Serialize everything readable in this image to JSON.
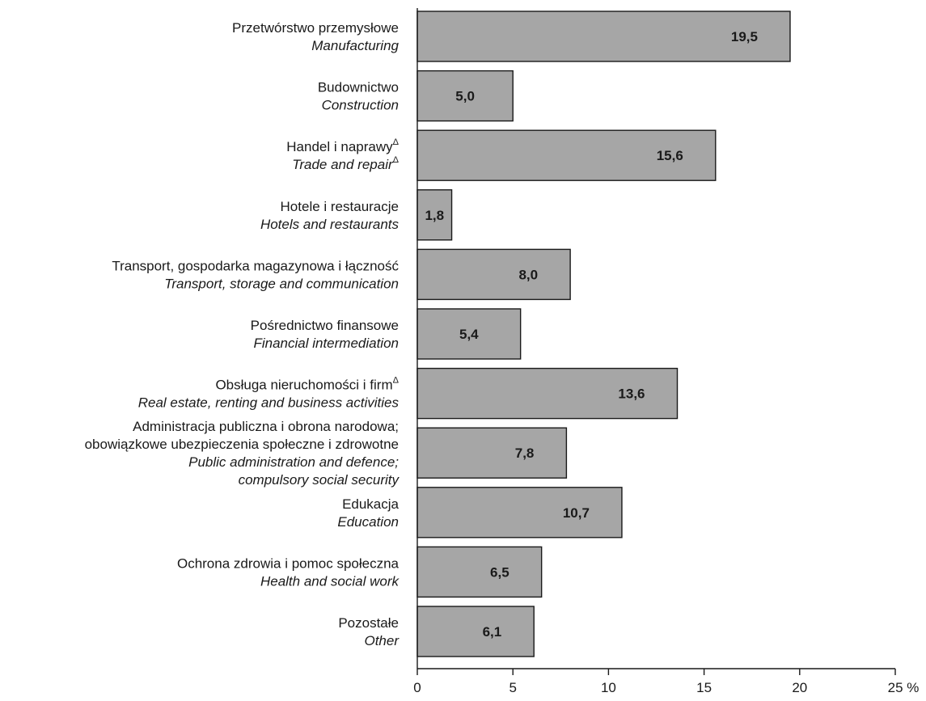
{
  "chart_data": {
    "type": "bar",
    "orientation": "horizontal",
    "x_unit": "%",
    "xlim": [
      0,
      25
    ],
    "x_ticks": [
      "0",
      "5",
      "10",
      "15",
      "20",
      "25 %"
    ],
    "grid": false,
    "bar_color": "#a6a6a6",
    "categories": [
      {
        "lines": [
          {
            "text": "Przetwórstwo przemysłowe",
            "italic": false
          },
          {
            "text": "Manufacturing",
            "italic": true
          }
        ],
        "value": 19.5,
        "label": "19,5"
      },
      {
        "lines": [
          {
            "text": "Budownictwo",
            "italic": false
          },
          {
            "text": "Construction",
            "italic": true
          }
        ],
        "value": 5.0,
        "label": "5,0"
      },
      {
        "lines": [
          {
            "text": "Handel i naprawy",
            "italic": false,
            "sup": "Δ"
          },
          {
            "text": "Trade and repair",
            "italic": true,
            "sup": "Δ"
          }
        ],
        "value": 15.6,
        "label": "15,6"
      },
      {
        "lines": [
          {
            "text": "Hotele i restauracje",
            "italic": false
          },
          {
            "text": "Hotels and restaurants",
            "italic": true
          }
        ],
        "value": 1.8,
        "label": "1,8"
      },
      {
        "lines": [
          {
            "text": "Transport, gospodarka magazynowa i łączność",
            "italic": false
          },
          {
            "text": "Transport, storage and communication",
            "italic": true
          }
        ],
        "value": 8.0,
        "label": "8,0"
      },
      {
        "lines": [
          {
            "text": "Pośrednictwo finansowe",
            "italic": false
          },
          {
            "text": "Financial intermediation",
            "italic": true
          }
        ],
        "value": 5.4,
        "label": "5,4"
      },
      {
        "lines": [
          {
            "text": "Obsługa nieruchomości i firm",
            "italic": false,
            "sup": "Δ"
          },
          {
            "text": "Real estate, renting and business activities",
            "italic": true
          }
        ],
        "value": 13.6,
        "label": "13,6"
      },
      {
        "lines": [
          {
            "text": "Administracja publiczna i obrona narodowa;",
            "italic": false
          },
          {
            "text": "obowiązkowe ubezpieczenia społeczne i zdrowotne",
            "italic": false
          },
          {
            "text": "Public administration and defence;",
            "italic": true
          },
          {
            "text": "compulsory social security",
            "italic": true
          }
        ],
        "value": 7.8,
        "label": "7,8"
      },
      {
        "lines": [
          {
            "text": "Edukacja",
            "italic": false
          },
          {
            "text": "Education",
            "italic": true
          }
        ],
        "value": 10.7,
        "label": "10,7"
      },
      {
        "lines": [
          {
            "text": "Ochrona zdrowia i pomoc społeczna",
            "italic": false
          },
          {
            "text": "Health and social work",
            "italic": true
          }
        ],
        "value": 6.5,
        "label": "6,5"
      },
      {
        "lines": [
          {
            "text": "Pozostałe",
            "italic": false
          },
          {
            "text": "Other",
            "italic": true
          }
        ],
        "value": 6.1,
        "label": "6,1"
      }
    ]
  }
}
